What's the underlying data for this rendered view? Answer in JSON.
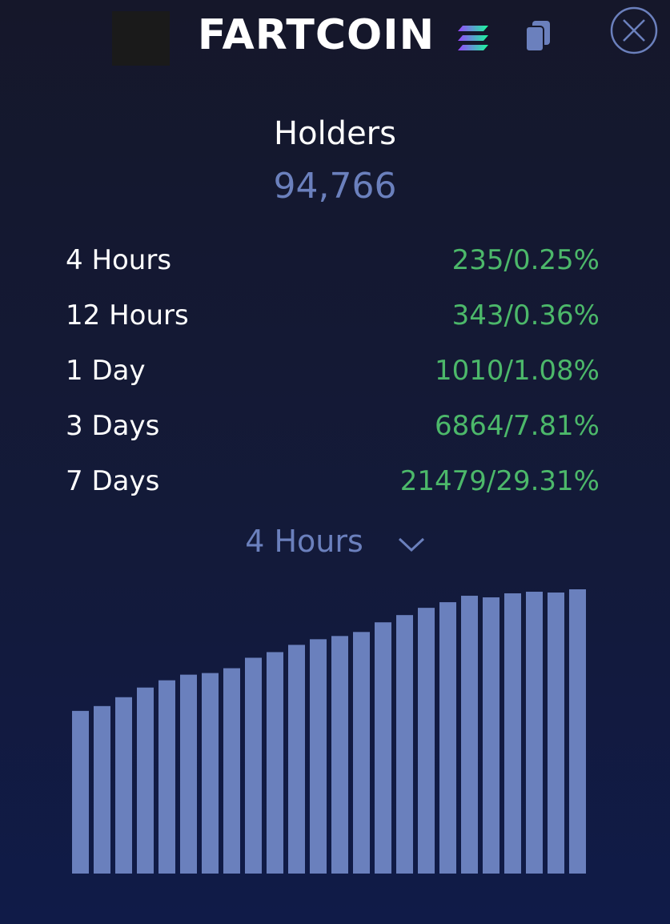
{
  "header": {
    "title": "FARTCOIN"
  },
  "holders": {
    "label": "Holders",
    "value": "94,766"
  },
  "rows": [
    {
      "label": "4 Hours",
      "value": "235/0.25%"
    },
    {
      "label": "12 Hours",
      "value": "343/0.36%"
    },
    {
      "label": "1 Day",
      "value": "1010/1.08%"
    },
    {
      "label": "3 Days",
      "value": "6864/7.81%"
    },
    {
      "label": "7 Days",
      "value": "21479/29.31%"
    }
  ],
  "dropdown": {
    "label": "4 Hours"
  },
  "chart_data": {
    "type": "bar",
    "color": "#6a80bd",
    "values": [
      202,
      208,
      219,
      231,
      240,
      247,
      249,
      255,
      268,
      275,
      284,
      291,
      295,
      300,
      312,
      321,
      330,
      337,
      345,
      343,
      348,
      350,
      349,
      353
    ]
  }
}
